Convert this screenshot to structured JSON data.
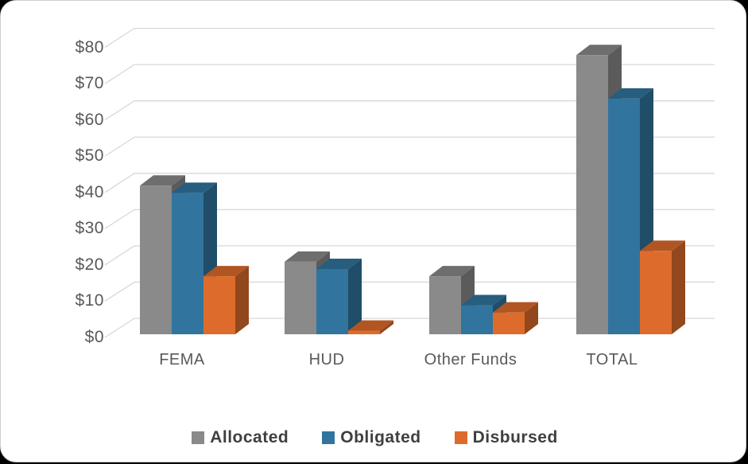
{
  "page": {
    "background_color": "#000000",
    "card_background": "#FFFFFF",
    "grid_color": "#D8D8D8",
    "axis_text_color": "#595959",
    "legend_text_color": "#3F3F3F"
  },
  "chart_data": {
    "type": "bar",
    "subtype": "3d-clustered-column",
    "title": "",
    "xlabel": "",
    "ylabel": "",
    "grid": true,
    "legend_position": "bottom",
    "categories": [
      "FEMA",
      "HUD",
      "Other Funds",
      "TOTAL"
    ],
    "series": [
      {
        "name": "Allocated",
        "color": "#8A8A8A",
        "values": [
          41,
          20,
          16,
          77
        ]
      },
      {
        "name": "Obligated",
        "color": "#31749E",
        "values": [
          39,
          18,
          8,
          65
        ]
      },
      {
        "name": "Disbursed",
        "color": "#DD6C2C",
        "values": [
          16,
          1,
          6,
          23
        ]
      }
    ],
    "y_axis": {
      "min": 0,
      "max": 80,
      "tick_step": 10,
      "tick_labels": [
        "$0",
        "$10",
        "$20",
        "$30",
        "$40",
        "$50",
        "$60",
        "$70",
        "$80"
      ],
      "tick_values": [
        0,
        10,
        20,
        30,
        40,
        50,
        60,
        70,
        80
      ]
    }
  }
}
